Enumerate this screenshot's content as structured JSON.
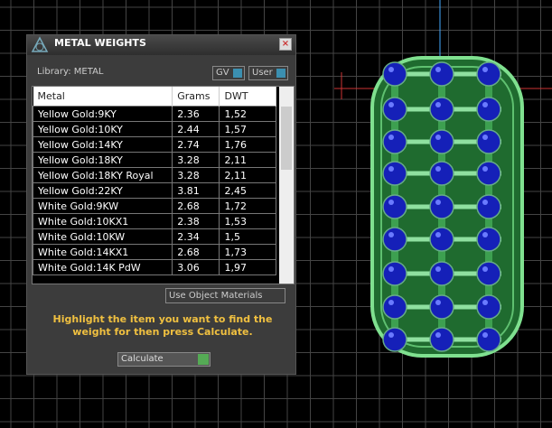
{
  "panel": {
    "title": "METAL WEIGHTS",
    "library": "Library: METAL",
    "toggles": [
      "GV",
      "User"
    ],
    "table": {
      "columns": [
        "Metal",
        "Grams",
        "DWT"
      ],
      "rows": [
        [
          "Yellow Gold:9KY",
          "2.36",
          "1,52"
        ],
        [
          "Yellow Gold:10KY",
          "2.44",
          "1,57"
        ],
        [
          "Yellow Gold:14KY",
          "2.74",
          "1,76"
        ],
        [
          "Yellow Gold:18KY",
          "3.28",
          "2,11"
        ],
        [
          "Yellow Gold:18KY Royal",
          "3.28",
          "2,11"
        ],
        [
          "Yellow Gold:22KY",
          "3.81",
          "2,45"
        ],
        [
          "White Gold:9KW",
          "2.68",
          "1,72"
        ],
        [
          "White Gold:10KX1",
          "2.38",
          "1,53"
        ],
        [
          "White Gold:10KW",
          "2.34",
          "1,5"
        ],
        [
          "White Gold:14KX1",
          "2.68",
          "1,73"
        ],
        [
          "White Gold:14K PdW",
          "3.06",
          "1,97"
        ]
      ]
    },
    "option": "Use Object Materials",
    "instruction": "Highlight the item you want to find the weight for then press Calculate.",
    "button": "Calculate"
  }
}
